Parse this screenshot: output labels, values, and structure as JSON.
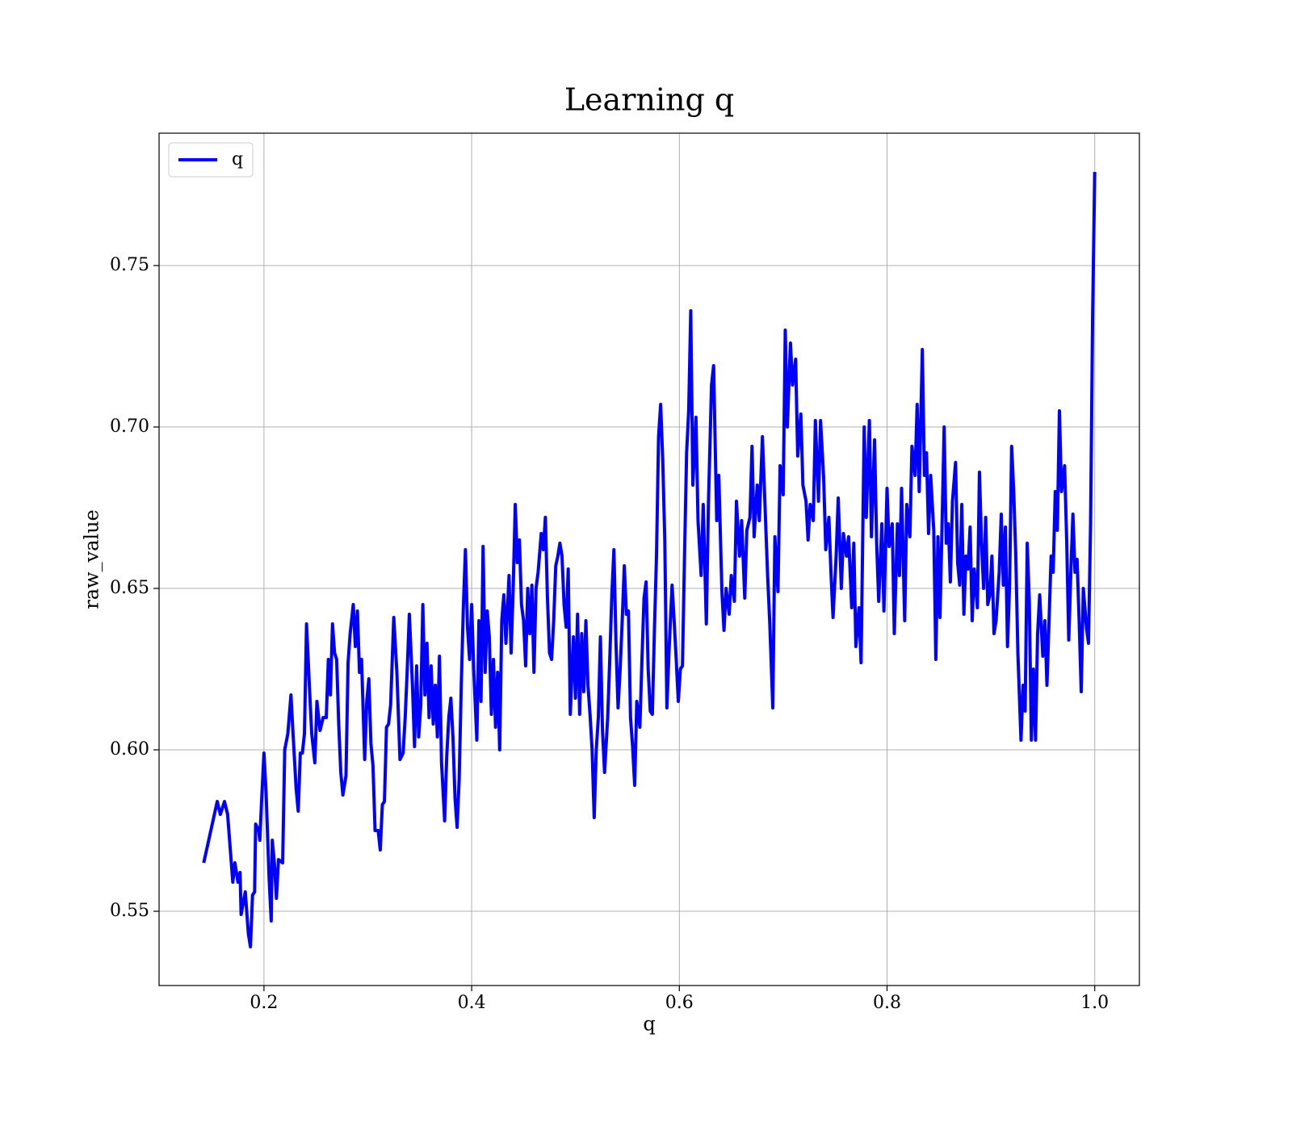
{
  "chart_data": {
    "type": "line",
    "title": "Learning q",
    "xlabel": "q",
    "ylabel": "raw_value",
    "legend": "upper left",
    "grid": true,
    "xlim": [
      0.099,
      1.043
    ],
    "ylim": [
      0.527,
      0.791
    ],
    "xticks": [
      0.2,
      0.4,
      0.6,
      0.8,
      {
        "value": 1,
        "label": "1.0"
      }
    ],
    "yticks": [
      0.55,
      {
        "value": 0.6,
        "label": "0.60"
      },
      0.65,
      {
        "value": 0.7,
        "label": "0.70"
      },
      0.75
    ],
    "x": [
      0.142,
      0.155,
      0.158,
      0.162,
      0.165,
      0.17,
      0.172,
      0.175,
      0.177,
      0.178,
      0.182,
      0.185,
      0.187,
      0.189,
      0.191,
      0.192,
      0.195,
      0.196,
      0.198,
      0.2,
      0.202,
      0.205,
      0.207,
      0.208,
      0.21,
      0.212,
      0.214,
      0.218,
      0.22,
      0.223,
      0.226,
      0.228,
      0.231,
      0.233,
      0.235,
      0.237,
      0.239,
      0.241,
      0.244,
      0.246,
      0.249,
      0.251,
      0.254,
      0.257,
      0.26,
      0.262,
      0.264,
      0.266,
      0.268,
      0.27,
      0.272,
      0.274,
      0.276,
      0.279,
      0.281,
      0.283,
      0.286,
      0.288,
      0.29,
      0.292,
      0.294,
      0.297,
      0.299,
      0.301,
      0.303,
      0.305,
      0.307,
      0.31,
      0.312,
      0.314,
      0.316,
      0.318,
      0.32,
      0.322,
      0.325,
      0.328,
      0.331,
      0.334,
      0.336,
      0.338,
      0.34,
      0.343,
      0.345,
      0.347,
      0.349,
      0.351,
      0.353,
      0.355,
      0.357,
      0.359,
      0.361,
      0.363,
      0.365,
      0.367,
      0.369,
      0.371,
      0.374,
      0.376,
      0.378,
      0.38,
      0.382,
      0.384,
      0.386,
      0.388,
      0.39,
      0.392,
      0.394,
      0.396,
      0.398,
      0.4,
      0.402,
      0.405,
      0.407,
      0.409,
      0.411,
      0.413,
      0.415,
      0.417,
      0.419,
      0.421,
      0.423,
      0.425,
      0.427,
      0.429,
      0.431,
      0.433,
      0.436,
      0.438,
      0.44,
      0.442,
      0.444,
      0.446,
      0.448,
      0.45,
      0.452,
      0.454,
      0.456,
      0.458,
      0.46,
      0.462,
      0.464,
      0.467,
      0.469,
      0.471,
      0.473,
      0.475,
      0.477,
      0.479,
      0.481,
      0.483,
      0.485,
      0.487,
      0.489,
      0.491,
      0.493,
      0.495,
      0.498,
      0.5,
      0.502,
      0.504,
      0.506,
      0.508,
      0.51,
      0.512,
      0.514,
      0.516,
      0.518,
      0.52,
      0.522,
      0.524,
      0.526,
      0.528,
      0.531,
      0.533,
      0.535,
      0.537,
      0.539,
      0.541,
      0.543,
      0.545,
      0.547,
      0.549,
      0.551,
      0.553,
      0.555,
      0.557,
      0.559,
      0.562,
      0.564,
      0.566,
      0.568,
      0.57,
      0.572,
      0.574,
      0.576,
      0.578,
      0.58,
      0.582,
      0.584,
      0.586,
      0.588,
      0.59,
      0.593,
      0.595,
      0.597,
      0.599,
      0.601,
      0.603,
      0.605,
      0.607,
      0.609,
      0.611,
      0.613,
      0.616,
      0.618,
      0.621,
      0.623,
      0.626,
      0.628,
      0.631,
      0.633,
      0.636,
      0.638,
      0.641,
      0.643,
      0.645,
      0.648,
      0.65,
      0.653,
      0.655,
      0.658,
      0.66,
      0.663,
      0.665,
      0.668,
      0.67,
      0.672,
      0.675,
      0.677,
      0.68,
      0.682,
      0.685,
      0.687,
      0.69,
      0.692,
      0.695,
      0.697,
      0.7,
      0.702,
      0.704,
      0.707,
      0.709,
      0.712,
      0.714,
      0.717,
      0.719,
      0.722,
      0.724,
      0.726,
      0.729,
      0.731,
      0.734,
      0.736,
      0.739,
      0.741,
      0.744,
      0.746,
      0.748,
      0.751,
      0.753,
      0.756,
      0.758,
      0.761,
      0.763,
      0.766,
      0.768,
      0.77,
      0.773,
      0.775,
      0.778,
      0.78,
      0.783,
      0.785,
      0.788,
      0.79,
      0.792,
      0.795,
      0.797,
      0.8,
      0.802,
      0.805,
      0.807,
      0.81,
      0.812,
      0.814,
      0.817,
      0.819,
      0.822,
      0.824,
      0.827,
      0.829,
      0.831,
      0.834,
      0.836,
      0.838,
      0.84,
      0.842,
      0.845,
      0.847,
      0.849,
      0.851,
      0.853,
      0.855,
      0.857,
      0.859,
      0.861,
      0.863,
      0.866,
      0.868,
      0.87,
      0.872,
      0.874,
      0.876,
      0.878,
      0.88,
      0.882,
      0.884,
      0.887,
      0.889,
      0.891,
      0.893,
      0.895,
      0.897,
      0.899,
      0.901,
      0.903,
      0.905,
      0.908,
      0.91,
      0.912,
      0.914,
      0.916,
      0.918,
      0.92,
      0.922,
      0.924,
      0.926,
      0.929,
      0.931,
      0.933,
      0.935,
      0.937,
      0.939,
      0.941,
      0.943,
      0.945,
      0.947,
      0.95,
      0.952,
      0.954,
      0.956,
      0.958,
      0.96,
      0.962,
      0.964,
      0.966,
      0.968,
      0.971,
      0.973,
      0.975,
      0.977,
      0.979,
      0.981,
      0.983,
      0.985,
      0.987,
      0.989,
      0.992,
      0.994,
      0.996,
      0.998,
      1.0
    ],
    "series": [
      {
        "name": "q",
        "color": "#0000ff",
        "values": [
          0.565,
          0.584,
          0.58,
          0.584,
          0.58,
          0.559,
          0.565,
          0.559,
          0.562,
          0.549,
          0.556,
          0.543,
          0.539,
          0.555,
          0.556,
          0.577,
          0.575,
          0.572,
          0.586,
          0.599,
          0.587,
          0.56,
          0.547,
          0.572,
          0.565,
          0.554,
          0.566,
          0.565,
          0.6,
          0.605,
          0.617,
          0.605,
          0.588,
          0.581,
          0.599,
          0.599,
          0.605,
          0.639,
          0.618,
          0.605,
          0.596,
          0.615,
          0.606,
          0.61,
          0.61,
          0.628,
          0.617,
          0.639,
          0.63,
          0.628,
          0.608,
          0.593,
          0.586,
          0.592,
          0.627,
          0.636,
          0.645,
          0.632,
          0.643,
          0.624,
          0.628,
          0.597,
          0.615,
          0.622,
          0.602,
          0.595,
          0.575,
          0.575,
          0.569,
          0.583,
          0.584,
          0.607,
          0.608,
          0.614,
          0.641,
          0.624,
          0.597,
          0.599,
          0.61,
          0.625,
          0.642,
          0.62,
          0.601,
          0.626,
          0.604,
          0.614,
          0.645,
          0.617,
          0.633,
          0.61,
          0.626,
          0.608,
          0.62,
          0.604,
          0.629,
          0.596,
          0.578,
          0.598,
          0.61,
          0.616,
          0.604,
          0.585,
          0.576,
          0.591,
          0.62,
          0.644,
          0.662,
          0.638,
          0.628,
          0.645,
          0.625,
          0.603,
          0.64,
          0.615,
          0.663,
          0.624,
          0.643,
          0.635,
          0.611,
          0.628,
          0.607,
          0.624,
          0.6,
          0.64,
          0.648,
          0.633,
          0.654,
          0.63,
          0.65,
          0.676,
          0.658,
          0.665,
          0.645,
          0.64,
          0.626,
          0.65,
          0.636,
          0.651,
          0.624,
          0.65,
          0.655,
          0.667,
          0.662,
          0.672,
          0.647,
          0.63,
          0.628,
          0.64,
          0.657,
          0.66,
          0.664,
          0.66,
          0.645,
          0.638,
          0.656,
          0.611,
          0.635,
          0.616,
          0.642,
          0.611,
          0.636,
          0.618,
          0.64,
          0.62,
          0.611,
          0.6,
          0.579,
          0.6,
          0.61,
          0.635,
          0.606,
          0.593,
          0.61,
          0.628,
          0.648,
          0.662,
          0.633,
          0.613,
          0.625,
          0.64,
          0.657,
          0.642,
          0.643,
          0.61,
          0.601,
          0.589,
          0.615,
          0.607,
          0.628,
          0.647,
          0.652,
          0.625,
          0.612,
          0.611,
          0.637,
          0.66,
          0.697,
          0.707,
          0.69,
          0.665,
          0.613,
          0.63,
          0.651,
          0.64,
          0.628,
          0.615,
          0.625,
          0.626,
          0.66,
          0.692,
          0.705,
          0.736,
          0.682,
          0.703,
          0.671,
          0.654,
          0.676,
          0.639,
          0.676,
          0.713,
          0.719,
          0.671,
          0.685,
          0.649,
          0.637,
          0.65,
          0.642,
          0.654,
          0.646,
          0.677,
          0.66,
          0.671,
          0.647,
          0.668,
          0.672,
          0.694,
          0.666,
          0.682,
          0.671,
          0.697,
          0.68,
          0.654,
          0.64,
          0.613,
          0.666,
          0.649,
          0.688,
          0.679,
          0.73,
          0.7,
          0.726,
          0.713,
          0.721,
          0.691,
          0.704,
          0.682,
          0.677,
          0.665,
          0.676,
          0.671,
          0.702,
          0.677,
          0.702,
          0.684,
          0.662,
          0.672,
          0.655,
          0.641,
          0.66,
          0.678,
          0.65,
          0.667,
          0.66,
          0.666,
          0.644,
          0.664,
          0.632,
          0.644,
          0.627,
          0.7,
          0.672,
          0.702,
          0.666,
          0.696,
          0.664,
          0.646,
          0.67,
          0.643,
          0.681,
          0.663,
          0.67,
          0.636,
          0.67,
          0.654,
          0.681,
          0.64,
          0.676,
          0.666,
          0.694,
          0.685,
          0.707,
          0.68,
          0.724,
          0.685,
          0.692,
          0.667,
          0.685,
          0.668,
          0.628,
          0.666,
          0.641,
          0.67,
          0.7,
          0.664,
          0.67,
          0.652,
          0.677,
          0.689,
          0.658,
          0.651,
          0.676,
          0.642,
          0.66,
          0.656,
          0.669,
          0.64,
          0.656,
          0.644,
          0.686,
          0.664,
          0.65,
          0.672,
          0.645,
          0.648,
          0.66,
          0.636,
          0.64,
          0.655,
          0.673,
          0.651,
          0.669,
          0.632,
          0.651,
          0.694,
          0.68,
          0.66,
          0.63,
          0.603,
          0.62,
          0.612,
          0.664,
          0.646,
          0.603,
          0.625,
          0.603,
          0.636,
          0.648,
          0.629,
          0.64,
          0.62,
          0.64,
          0.66,
          0.655,
          0.68,
          0.668,
          0.705,
          0.68,
          0.688,
          0.665,
          0.634,
          0.655,
          0.673,
          0.655,
          0.659,
          0.64,
          0.618,
          0.65,
          0.638,
          0.633,
          0.67,
          0.735,
          0.779
        ]
      }
    ]
  }
}
